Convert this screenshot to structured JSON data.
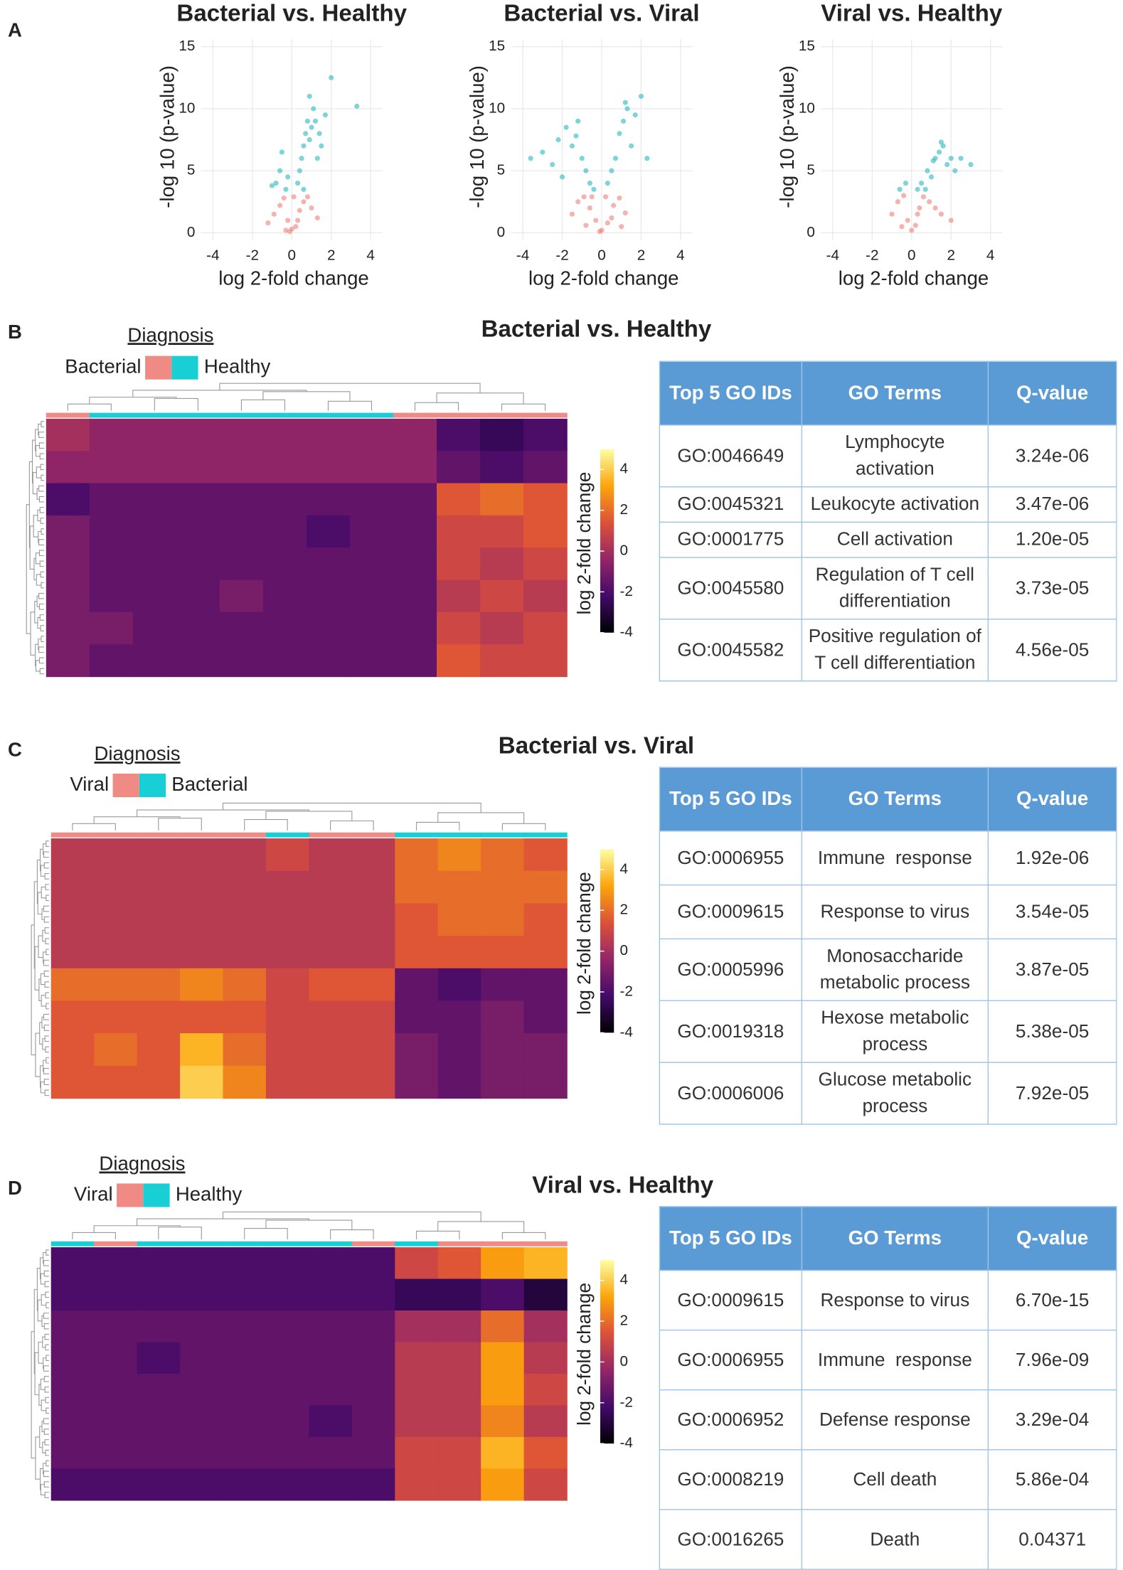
{
  "panel_labels": [
    "A",
    "B",
    "C",
    "D"
  ],
  "chart_data": [
    {
      "type": "scatter",
      "title": "Bacterial vs. Healthy",
      "x_label": "log 2-fold change",
      "y_label": "-log 10 (p-value)",
      "xlim": [
        -4.6,
        4.6
      ],
      "ylim": [
        -0.6,
        15.6
      ],
      "xticks": [
        -4,
        -2,
        0,
        2,
        4
      ],
      "yticks": [
        0,
        5,
        10,
        15
      ],
      "grid": true,
      "series": [
        {
          "color": "#2ab8c0",
          "x": [
            -0.8,
            -0.6,
            -0.5,
            -0.3,
            -0.2,
            0.3,
            0.4,
            0.5,
            0.6,
            0.7,
            0.8,
            0.9,
            1.0,
            1.1,
            1.2,
            1.4,
            1.5,
            1.7,
            2.0,
            3.3,
            -1.0,
            0.9,
            1.3,
            0.6
          ],
          "values": [
            4,
            5,
            6.5,
            3.5,
            4.5,
            4,
            5,
            6,
            7,
            8,
            9,
            7.5,
            8.5,
            10,
            9,
            8,
            7,
            9.5,
            12.5,
            10.2,
            3.8,
            11,
            6,
            3.5
          ]
        },
        {
          "color": "#f07f78",
          "x": [
            -1.2,
            -0.9,
            -0.6,
            -0.4,
            -0.2,
            0,
            0.2,
            0.4,
            0.6,
            0.8,
            1.0,
            1.3,
            -0.3,
            0.1,
            0.3,
            -0.1
          ],
          "values": [
            0.8,
            1.5,
            2.2,
            2.8,
            1,
            0.3,
            0.5,
            1.8,
            2.5,
            2.9,
            2,
            1.2,
            0.2,
            2.9,
            1,
            0.1
          ]
        }
      ]
    },
    {
      "type": "scatter",
      "title": "Bacterial vs. Viral",
      "x_label": "log 2-fold change",
      "y_label": "-log 10 (p-value)",
      "xlim": [
        -4.6,
        4.6
      ],
      "ylim": [
        -0.6,
        15.6
      ],
      "xticks": [
        -4,
        -2,
        0,
        2,
        4
      ],
      "yticks": [
        0,
        5,
        10,
        15
      ],
      "grid": true,
      "series": [
        {
          "color": "#2ab8c0",
          "x": [
            -3.6,
            -3,
            -2.5,
            -2.2,
            -1.8,
            -1.5,
            -1.2,
            -1,
            -0.8,
            -0.6,
            -0.4,
            0.3,
            0.5,
            0.7,
            0.9,
            1.1,
            1.3,
            1.5,
            1.7,
            2.0,
            2.3,
            -2,
            -1.3,
            1.2
          ],
          "values": [
            6,
            6.5,
            5.5,
            7.5,
            8.5,
            7,
            9,
            6,
            5,
            4,
            3.5,
            4,
            5,
            6,
            8,
            9,
            10,
            7,
            9.5,
            11,
            6,
            4.5,
            7.8,
            10.5
          ]
        },
        {
          "color": "#f07f78",
          "x": [
            -1.5,
            -1.2,
            -0.9,
            -0.6,
            -0.3,
            0,
            0.3,
            0.6,
            0.9,
            1.2,
            -0.5,
            0.2,
            -0.1,
            0.5,
            -0.8,
            1
          ],
          "values": [
            1.5,
            2.5,
            2.9,
            2,
            1,
            0.2,
            0.8,
            2.2,
            2.8,
            1.6,
            2.9,
            2.9,
            0.1,
            1.2,
            0.6,
            0.5
          ]
        }
      ]
    },
    {
      "type": "scatter",
      "title": "Viral vs. Healthy",
      "x_label": "log 2-fold change",
      "y_label": "-log 10 (p-value)",
      "xlim": [
        -4.6,
        4.6
      ],
      "ylim": [
        -0.6,
        15.6
      ],
      "xticks": [
        -4,
        -2,
        0,
        2,
        4
      ],
      "yticks": [
        0,
        5,
        10,
        15
      ],
      "grid": true,
      "series": [
        {
          "color": "#2ab8c0",
          "x": [
            -0.6,
            -0.3,
            0.3,
            0.5,
            0.8,
            1.0,
            1.2,
            1.4,
            1.6,
            1.8,
            2.0,
            2.2,
            2.5,
            3.0,
            0.7,
            1.1,
            1.5
          ],
          "values": [
            3.5,
            4,
            3.5,
            4,
            5,
            4.5,
            6,
            6.5,
            7,
            5.5,
            6,
            5,
            6,
            5.5,
            3.5,
            5.8,
            7.3
          ]
        },
        {
          "color": "#f07f78",
          "x": [
            -1,
            -0.7,
            -0.4,
            -0.2,
            0,
            0.2,
            0.4,
            0.6,
            0.9,
            1.2,
            1.5,
            2.0,
            -0.5,
            0.3
          ],
          "values": [
            1.5,
            2.5,
            3,
            1,
            0.2,
            0.6,
            2,
            2.9,
            2.5,
            2,
            1.5,
            1,
            0.5,
            1.5
          ]
        }
      ]
    }
  ],
  "colormap": [
    "#000004",
    "#420a68",
    "#932667",
    "#dd513a",
    "#fca50a",
    "#fcffa4"
  ],
  "heatmaps": [
    {
      "title": "Bacterial vs. Healthy",
      "legend_title": "Diagnosis",
      "legend_labels": [
        "Bacterial",
        "Healthy"
      ],
      "legend_colors": [
        "#f08a84",
        "#19cfd6"
      ],
      "colorbar_label": "log 2-fold change",
      "colorbar_lim": [
        -4,
        5
      ],
      "colorbar_ticks": [
        -4,
        -2,
        0,
        2,
        4
      ],
      "column_groups": [
        0,
        1,
        1,
        1,
        1,
        1,
        1,
        1,
        0,
        0,
        0,
        0
      ],
      "matrix": [
        [
          0,
          -0.5,
          -0.5,
          -0.5,
          -0.5,
          -0.5,
          -0.5,
          -0.5,
          -0.5,
          -2,
          -2.5,
          -2
        ],
        [
          -0.5,
          -0.5,
          -0.5,
          -0.5,
          -0.5,
          -0.5,
          -0.5,
          -0.5,
          -0.5,
          -1.5,
          -2,
          -1.5
        ],
        [
          -2,
          -1.5,
          -1.5,
          -1.5,
          -1.5,
          -1.5,
          -1.5,
          -1.5,
          -1.5,
          1.5,
          2,
          1.5
        ],
        [
          -1,
          -1.5,
          -1.5,
          -1.5,
          -1.5,
          -1.5,
          -2,
          -1.5,
          -1.5,
          1,
          1,
          1.5
        ],
        [
          -1,
          -1.5,
          -1.5,
          -1.5,
          -1.5,
          -1.5,
          -1.5,
          -1.5,
          -1.5,
          1,
          0.5,
          1
        ],
        [
          -1,
          -1.5,
          -1.5,
          -1.5,
          -1,
          -1.5,
          -1.5,
          -1.5,
          -1.5,
          0.5,
          1,
          0.5
        ],
        [
          -1,
          -1,
          -1.5,
          -1.5,
          -1.5,
          -1.5,
          -1.5,
          -1.5,
          -1.5,
          1,
          0.5,
          1
        ],
        [
          -1,
          -1.5,
          -1.5,
          -1.5,
          -1.5,
          -1.5,
          -1.5,
          -1.5,
          -1.5,
          1.5,
          1,
          1
        ]
      ],
      "table": {
        "header": [
          "Top 5 GO IDs",
          "GO Terms",
          "Q-value"
        ],
        "rows": [
          [
            "GO:0046649",
            "Lymphocyte activation",
            "3.24e-06"
          ],
          [
            "GO:0045321",
            "Leukocyte activation",
            "3.47e-06"
          ],
          [
            "GO:0001775",
            "Cell activation",
            "1.20e-05"
          ],
          [
            "GO:0045580",
            "Regulation of T cell differentiation",
            "3.73e-05"
          ],
          [
            "GO:0045582",
            "Positive regulation of T cell differentiation",
            "4.56e-05"
          ]
        ]
      }
    },
    {
      "title": "Bacterial vs. Viral",
      "legend_title": "Diagnosis",
      "legend_labels": [
        "Viral",
        "Bacterial"
      ],
      "legend_colors": [
        "#f08a84",
        "#19cfd6"
      ],
      "colorbar_label": "log 2-fold change",
      "colorbar_lim": [
        -4,
        5
      ],
      "colorbar_ticks": [
        -4,
        -2,
        0,
        2,
        4
      ],
      "column_groups": [
        0,
        0,
        0,
        0,
        0,
        1,
        0,
        0,
        1,
        1,
        1,
        1
      ],
      "matrix": [
        [
          0.5,
          0.5,
          0.5,
          0.5,
          0.5,
          1,
          0.5,
          0.5,
          2,
          2.5,
          2,
          1.5
        ],
        [
          0.5,
          0.5,
          0.5,
          0.5,
          0.5,
          0.5,
          0.5,
          0.5,
          2,
          2,
          2,
          2
        ],
        [
          0.5,
          0.5,
          0.5,
          0.5,
          0.5,
          0.5,
          0.5,
          0.5,
          1.5,
          2,
          2,
          1.5
        ],
        [
          0.5,
          0.5,
          0.5,
          0.5,
          0.5,
          0.5,
          0.5,
          0.5,
          1.5,
          1.5,
          1.5,
          1.5
        ],
        [
          2,
          2,
          2,
          2.5,
          2,
          1,
          1.5,
          1.5,
          -1.5,
          -2,
          -1.5,
          -1.5
        ],
        [
          1.5,
          1.5,
          1.5,
          1.5,
          1.5,
          1,
          1,
          1,
          -1.5,
          -1.5,
          -1,
          -1.5
        ],
        [
          1.5,
          2,
          1.5,
          3.5,
          2,
          1,
          1,
          1,
          -1,
          -1.5,
          -1,
          -1
        ],
        [
          1.5,
          1.5,
          1.5,
          4,
          2.5,
          1,
          1,
          1,
          -1,
          -1.5,
          -1,
          -1
        ]
      ],
      "table": {
        "header": [
          "Top 5 GO IDs",
          "GO Terms",
          "Q-value"
        ],
        "rows": [
          [
            "GO:0006955",
            "Immune  response",
            "1.92e-06"
          ],
          [
            "GO:0009615",
            "Response to virus",
            "3.54e-05"
          ],
          [
            "GO:0005996",
            "Monosaccharide metabolic process",
            "3.87e-05"
          ],
          [
            "GO:0019318",
            "Hexose metabolic process",
            "5.38e-05"
          ],
          [
            "GO:0006006",
            "Glucose metabolic process",
            "7.92e-05"
          ]
        ]
      }
    },
    {
      "title": "Viral vs. Healthy",
      "legend_title": "Diagnosis",
      "legend_labels": [
        "Viral",
        "Healthy"
      ],
      "legend_colors": [
        "#f08a84",
        "#19cfd6"
      ],
      "colorbar_label": "log 2-fold change",
      "colorbar_lim": [
        -4,
        5
      ],
      "colorbar_ticks": [
        -4,
        -2,
        0,
        2,
        4
      ],
      "column_groups": [
        1,
        0,
        1,
        1,
        1,
        1,
        1,
        0,
        1,
        0,
        0,
        0
      ],
      "matrix": [
        [
          -2,
          -2,
          -2,
          -2,
          -2,
          -2,
          -2,
          -2,
          1,
          1.5,
          3,
          3.5
        ],
        [
          -2,
          -2,
          -2,
          -2,
          -2,
          -2,
          -2,
          -2,
          -2.5,
          -2.5,
          -2,
          -3
        ],
        [
          -1.5,
          -1.5,
          -1.5,
          -1.5,
          -1.5,
          -1.5,
          -1.5,
          -1.5,
          0,
          0,
          2,
          0
        ],
        [
          -1.5,
          -1.5,
          -2,
          -1.5,
          -1.5,
          -1.5,
          -1.5,
          -1.5,
          0.5,
          0.5,
          3,
          0.5
        ],
        [
          -1.5,
          -1.5,
          -1.5,
          -1.5,
          -1.5,
          -1.5,
          -1.5,
          -1.5,
          0.5,
          0.5,
          3,
          1
        ],
        [
          -1.5,
          -1.5,
          -1.5,
          -1.5,
          -1.5,
          -1.5,
          -2,
          -1.5,
          0.5,
          0.5,
          2.5,
          0.5
        ],
        [
          -1.5,
          -1.5,
          -1.5,
          -1.5,
          -1.5,
          -1.5,
          -1.5,
          -1.5,
          1,
          1,
          3.5,
          1.5
        ],
        [
          -2,
          -2,
          -2,
          -2,
          -2,
          -2,
          -2,
          -2,
          1,
          1,
          3,
          1
        ]
      ],
      "table": {
        "header": [
          "Top 5 GO IDs",
          "GO Terms",
          "Q-value"
        ],
        "rows": [
          [
            "GO:0009615",
            "Response to virus",
            "6.70e-15"
          ],
          [
            "GO:0006955",
            "Immune  response",
            "7.96e-09"
          ],
          [
            "GO:0006952",
            "Defense response",
            "3.29e-04"
          ],
          [
            "GO:0008219",
            "Cell death",
            "5.86e-04"
          ],
          [
            "GO:0016265",
            "Death",
            "0.04371"
          ]
        ]
      }
    }
  ]
}
